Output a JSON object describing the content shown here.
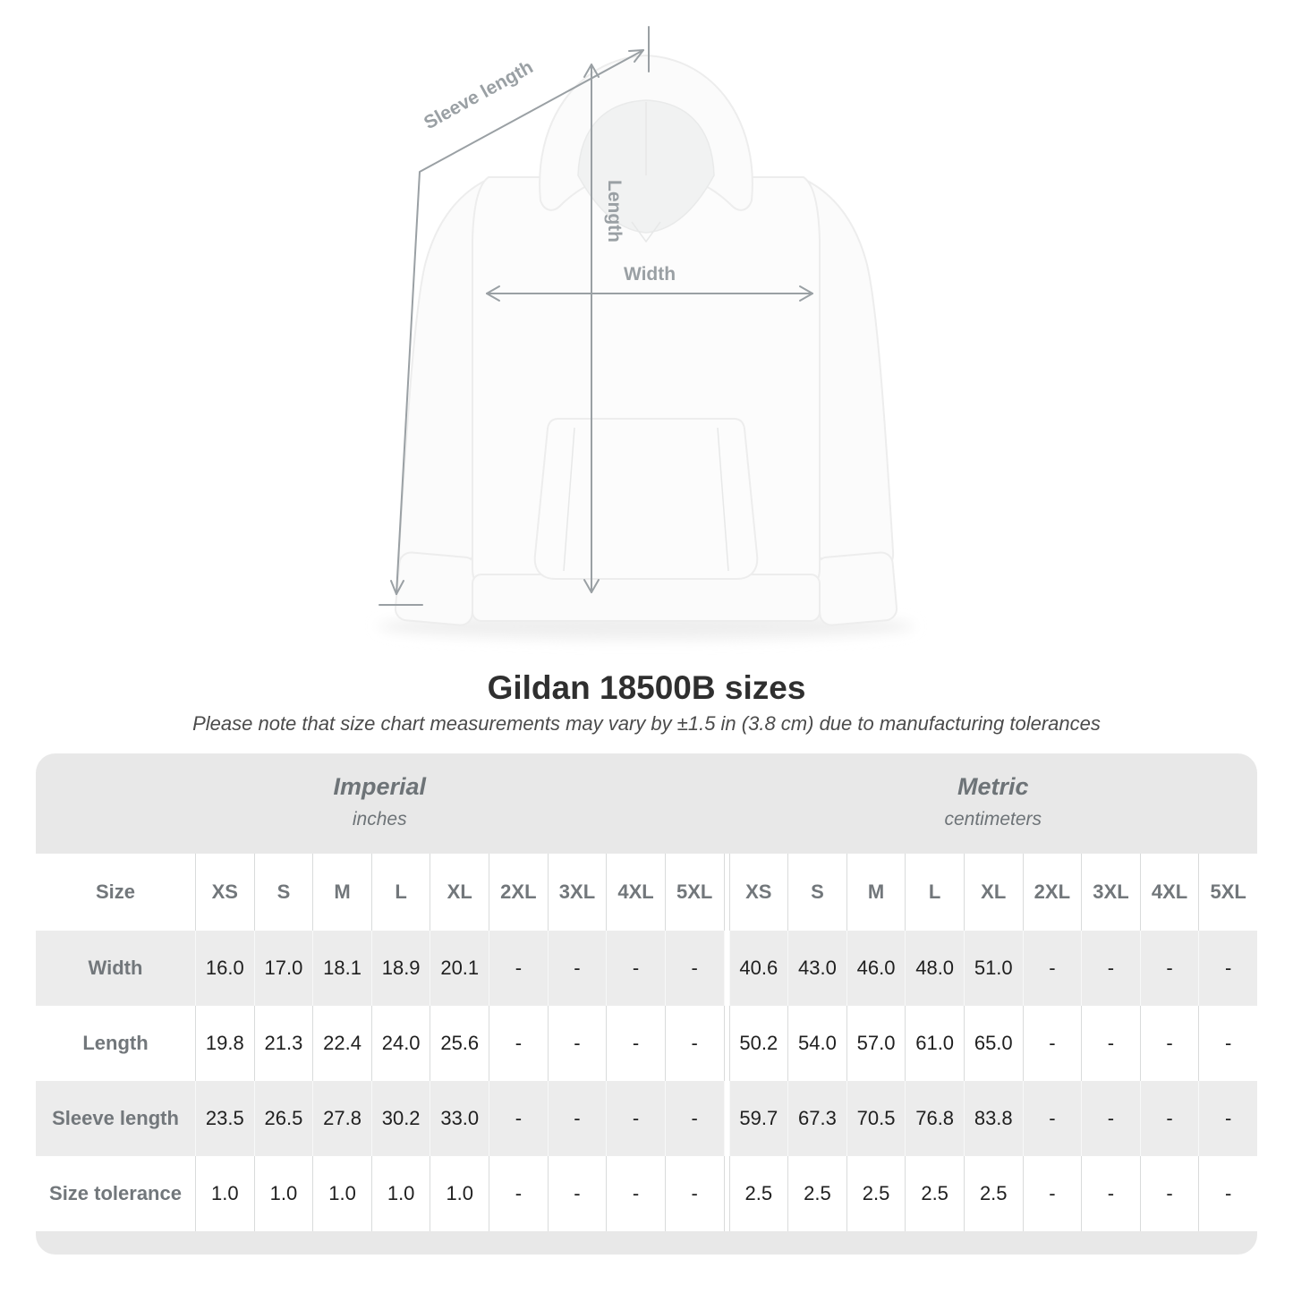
{
  "colors": {
    "band-gray": "#e8e8e8",
    "row-gray": "#ececec",
    "label-gray": "#72777b",
    "header-gray": "#6d7377",
    "arrow-gray": "#9aa0a4",
    "value-black": "#1f1f1f"
  },
  "diagram": {
    "labels": {
      "sleeve_length": "Sleeve length",
      "length": "Length",
      "width": "Width"
    }
  },
  "title": "Gildan 18500B sizes",
  "subtitle": "Please note that size chart measurements may vary by ±1.5 in (3.8 cm) due to manufacturing tolerances",
  "table": {
    "sections": {
      "imperial": {
        "label": "Imperial",
        "units": "inches"
      },
      "metric": {
        "label": "Metric",
        "units": "centimeters"
      }
    },
    "size_label": "Size",
    "columns": [
      "XS",
      "S",
      "M",
      "L",
      "XL",
      "2XL",
      "3XL",
      "4XL",
      "5XL"
    ],
    "rows": [
      {
        "label": "Width",
        "imperial": [
          "16.0",
          "17.0",
          "18.1",
          "18.9",
          "20.1",
          "-",
          "-",
          "-",
          "-"
        ],
        "metric": [
          "40.6",
          "43.0",
          "46.0",
          "48.0",
          "51.0",
          "-",
          "-",
          "-",
          "-"
        ]
      },
      {
        "label": "Length",
        "imperial": [
          "19.8",
          "21.3",
          "22.4",
          "24.0",
          "25.6",
          "-",
          "-",
          "-",
          "-"
        ],
        "metric": [
          "50.2",
          "54.0",
          "57.0",
          "61.0",
          "65.0",
          "-",
          "-",
          "-",
          "-"
        ]
      },
      {
        "label": "Sleeve length",
        "imperial": [
          "23.5",
          "26.5",
          "27.8",
          "30.2",
          "33.0",
          "-",
          "-",
          "-",
          "-"
        ],
        "metric": [
          "59.7",
          "67.3",
          "70.5",
          "76.8",
          "83.8",
          "-",
          "-",
          "-",
          "-"
        ]
      },
      {
        "label": "Size tolerance",
        "imperial": [
          "1.0",
          "1.0",
          "1.0",
          "1.0",
          "1.0",
          "-",
          "-",
          "-",
          "-"
        ],
        "metric": [
          "2.5",
          "2.5",
          "2.5",
          "2.5",
          "2.5",
          "-",
          "-",
          "-",
          "-"
        ]
      }
    ]
  }
}
